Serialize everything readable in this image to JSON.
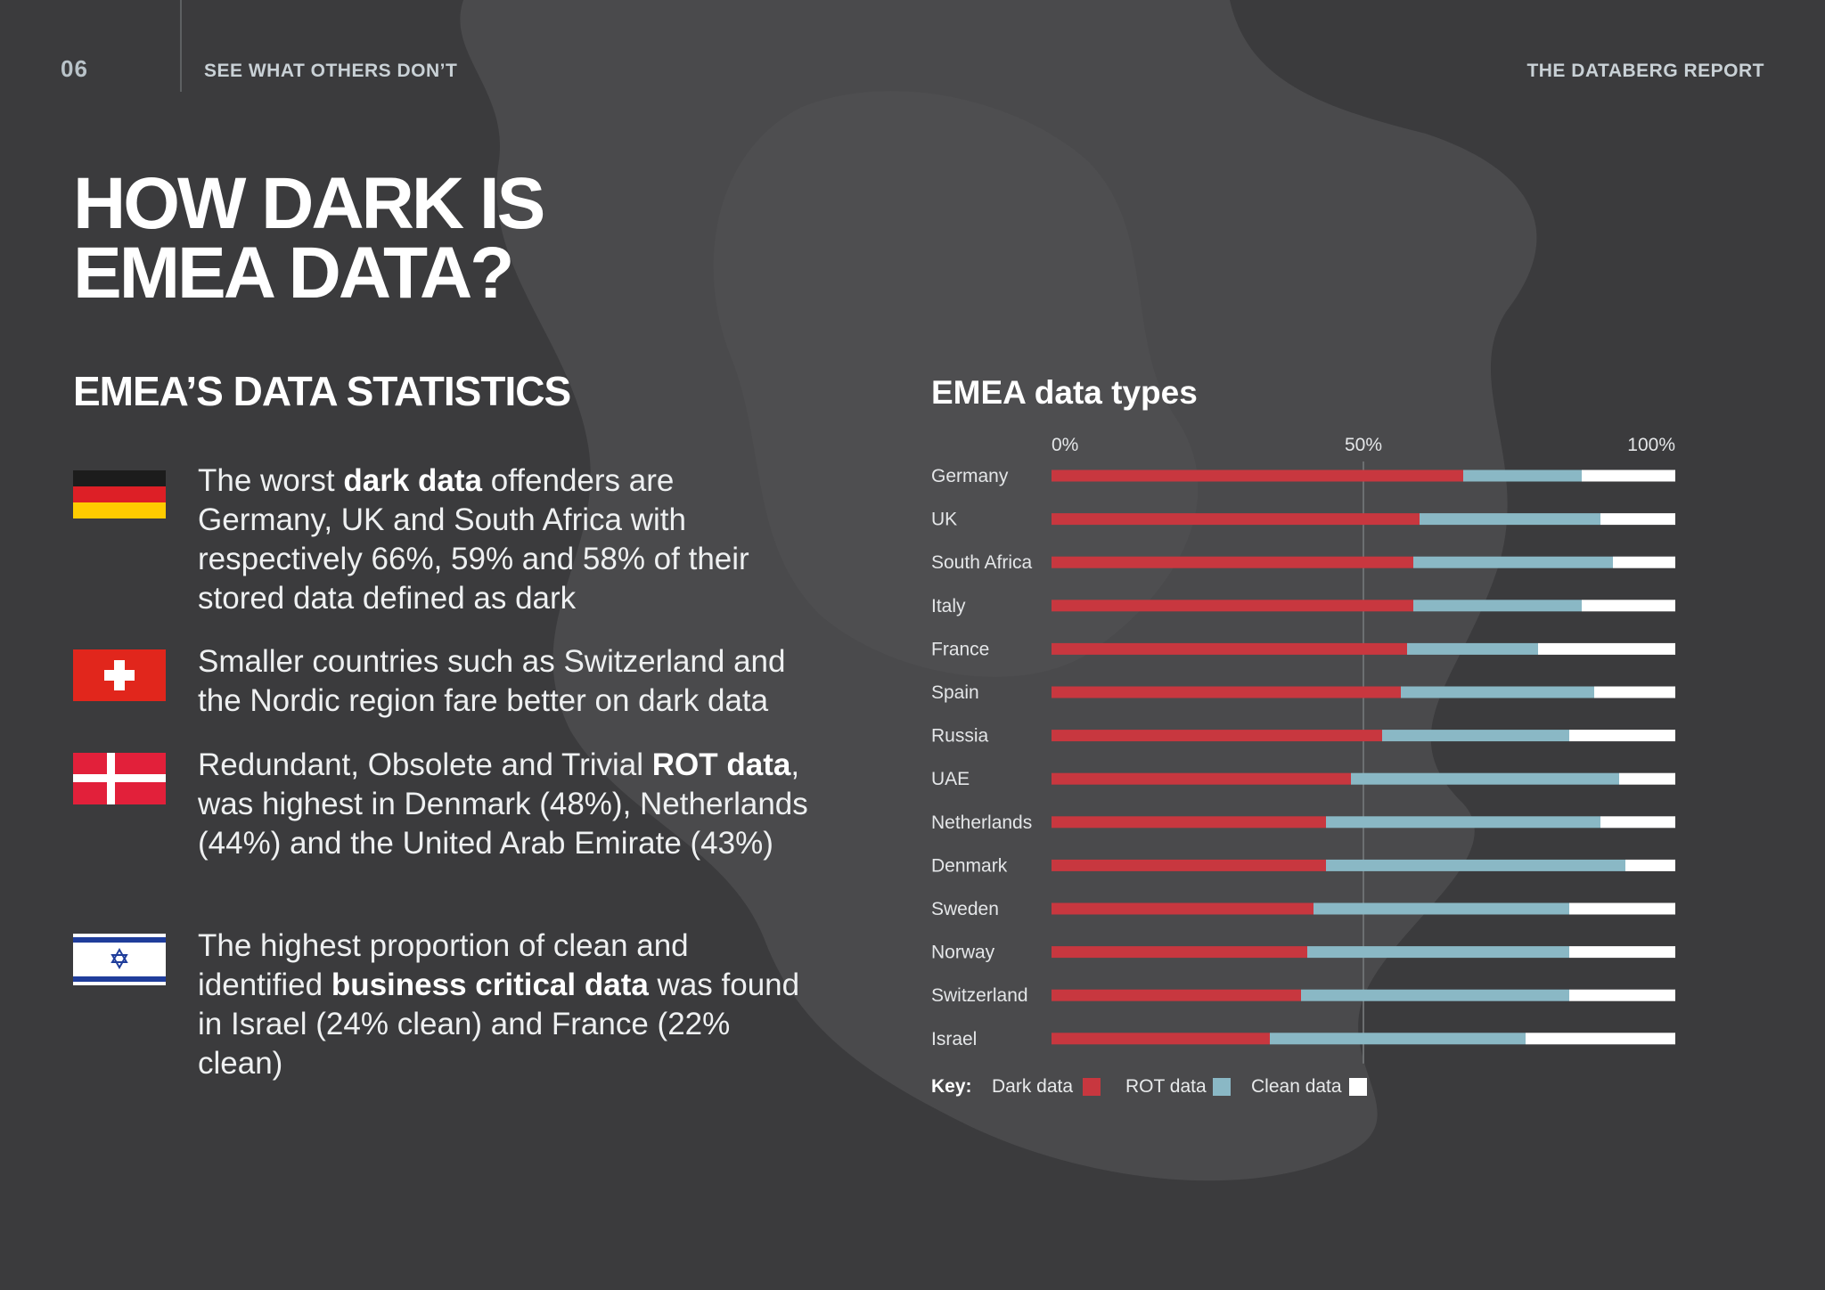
{
  "header": {
    "page_number": "06",
    "section": "SEE WHAT OTHERS DON’T",
    "report": "THE DATABERG REPORT"
  },
  "heading": {
    "line1": "HOW DARK IS",
    "line2": "EMEA DATA?"
  },
  "stats_heading": "EMEA’S DATA STATISTICS",
  "stats": [
    {
      "flag": "germany-flag",
      "parts": [
        "The worst ",
        "dark data",
        " offenders are Germany, UK and South Africa with respectively 66%, 59% and 58% of their stored data defined as dark"
      ]
    },
    {
      "flag": "switzerland-flag",
      "parts": [
        "Smaller countries such as Switzerland and the Nordic region fare better on dark data"
      ]
    },
    {
      "flag": "denmark-flag",
      "parts": [
        "Redundant, Obsolete and Trivial ",
        "ROT data",
        ", was highest in Denmark (48%), Netherlands (44%) and the United Arab Emirate (43%)"
      ]
    },
    {
      "flag": "israel-flag",
      "parts": [
        "The highest proportion of clean and identified ",
        "business critical data",
        " was found in Israel (24% clean) and France (22% clean)"
      ]
    }
  ],
  "colors": {
    "dark": "#c8373f",
    "rot": "#8ab8c5",
    "clean": "#ffffff",
    "background": "#3b3b3d"
  },
  "chart_data": {
    "type": "bar",
    "orientation": "horizontal",
    "stacked": true,
    "title": "EMEA data types",
    "x_ticks": [
      "0%",
      "50%",
      "100%"
    ],
    "xlim": [
      0,
      100
    ],
    "reference_line": 50,
    "categories": [
      "Germany",
      "UK",
      "South Africa",
      "Italy",
      "France",
      "Spain",
      "Russia",
      "UAE",
      "Netherlands",
      "Denmark",
      "Sweden",
      "Norway",
      "Switzerland",
      "Israel"
    ],
    "series": [
      {
        "name": "Dark data",
        "values": [
          66,
          59,
          58,
          58,
          57,
          56,
          53,
          48,
          44,
          44,
          42,
          41,
          40,
          35
        ]
      },
      {
        "name": "ROT data",
        "values": [
          19,
          29,
          32,
          27,
          21,
          31,
          30,
          43,
          44,
          48,
          41,
          42,
          43,
          41
        ]
      },
      {
        "name": "Clean data",
        "values": [
          15,
          12,
          10,
          15,
          22,
          13,
          17,
          9,
          12,
          8,
          17,
          17,
          17,
          24
        ]
      }
    ],
    "legend": {
      "title": "Key:",
      "position": "bottom-left"
    }
  }
}
